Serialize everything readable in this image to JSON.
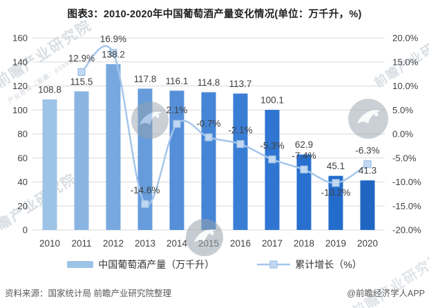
{
  "title": "图表3：2010-2020年中国葡萄酒产量变化情况(单位：万千升，%)",
  "chart_data": {
    "type": "bar+line",
    "categories": [
      "2010",
      "2011",
      "2012",
      "2013",
      "2014",
      "2015",
      "2016",
      "2017",
      "2018",
      "2019",
      "2020"
    ],
    "series": [
      {
        "name": "中国葡萄酒产量（万千升）",
        "type": "bar",
        "unit": "万千升",
        "values": [
          108.8,
          115.5,
          138.2,
          117.8,
          116.1,
          114.8,
          113.7,
          100.1,
          62.9,
          45.1,
          41.3
        ],
        "value_labels": [
          "108.8",
          "115.5",
          "138.2",
          "117.8",
          "116.1",
          "114.8",
          "113.7",
          "100.1",
          "62.9",
          "45.1",
          "41.3"
        ],
        "bar_colors": [
          "#9DC3E6",
          "#8AB5E2",
          "#77A8DF",
          "#669CDB",
          "#548FD8",
          "#4585D6",
          "#3A7DD4",
          "#2F75D1",
          "#2870CF",
          "#236CCB",
          "#1F66C2"
        ]
      },
      {
        "name": "累计增长（%）",
        "type": "line",
        "unit": "%",
        "values": [
          null,
          12.9,
          16.9,
          -14.6,
          2.1,
          -0.7,
          -2.1,
          -5.3,
          -7.4,
          -10.2,
          -6.3
        ],
        "point_labels": [
          "",
          "12.9%",
          "16.9%",
          "-14.6%",
          "2.1%",
          "-0.7%",
          "-2.1%",
          "-5.3%",
          "-7.4%",
          "-10.2%",
          "-6.3%"
        ],
        "line_color": "#A5C5EB",
        "marker_fill": "#C2D8F2",
        "marker_border": "#9DC3E6"
      }
    ],
    "left_axis": {
      "min": 0,
      "max": 160,
      "step": 20,
      "tick_labels": [
        "160",
        "140",
        "120",
        "100",
        "80",
        "60",
        "40",
        "20",
        "0"
      ]
    },
    "right_axis": {
      "min": -20,
      "max": 20,
      "step": 5,
      "tick_labels": [
        "20.0%",
        "15.0%",
        "10.0%",
        "5.0%",
        "0.0%",
        "-5.0%",
        "-10.0%",
        "-15.0%",
        "-20.0%"
      ]
    },
    "gridlines": true,
    "legend_position": "bottom"
  },
  "legend": {
    "items": [
      {
        "label": "中国葡萄酒产量（万千升）",
        "type": "bar"
      },
      {
        "label": "累计增长（%）",
        "type": "line"
      }
    ]
  },
  "footer": {
    "source": "资料来源：国家统计局 前瞻产业研究院整理",
    "credit": "@前瞻经济学人APP"
  },
  "watermark": {
    "text": "前瞻产业研究院",
    "sub_text": "产业咨询（股票：839599）"
  },
  "colors": {
    "grid": "#D9D9D9",
    "text": "#3F3F3F",
    "title": "#212121",
    "footer_text": "#595959"
  }
}
